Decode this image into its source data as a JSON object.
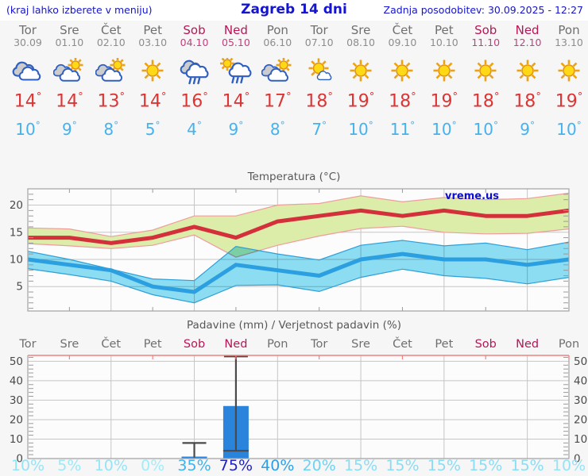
{
  "header": {
    "menu_hint": "(kraj lahko izberete v meniju)",
    "title": "Zagreb 14 dni",
    "last_update": "Zadnja posodobitev: 30.09.2025 - 12:27"
  },
  "watermark": "vreme.us",
  "colors": {
    "header_blue": "#1414d2",
    "day_gray": "#6f6f6f",
    "weekend_red": "#b81557",
    "tmax_red": "#dd3434",
    "tmin_blue": "#45b2ef",
    "max_line": "#d4303c",
    "max_band": "#dcedaa",
    "max_band_edge": "#f09c9c",
    "min_line": "#2b9fe0",
    "min_band": "#8edff5",
    "min_band_edge": "#2f9fd8",
    "bar_blue": "#2b84dc",
    "whisker_gray": "#4a4a4a",
    "top_axis_pink": "#f08080",
    "grid": "#c6c6c6",
    "plot_border": "#a3a3a3",
    "axis_text": "#4a4a4a",
    "watermark_blue": "#0e0ecc",
    "plot_bg": "#fcfcfc"
  },
  "days": [
    {
      "name": "Tor",
      "date": "30.09",
      "weekend": false,
      "icon": "cloudy",
      "tmax": "14",
      "tmin": "10",
      "prob": "10%",
      "prob_color": "#97e3f6"
    },
    {
      "name": "Sre",
      "date": "01.10",
      "weekend": false,
      "icon": "partly",
      "tmax": "14",
      "tmin": "9",
      "prob": "5%",
      "prob_color": "#9ce8f8"
    },
    {
      "name": "Čet",
      "date": "02.10",
      "weekend": false,
      "icon": "partly",
      "tmax": "13",
      "tmin": "8",
      "prob": "10%",
      "prob_color": "#97e3f6"
    },
    {
      "name": "Pet",
      "date": "03.10",
      "weekend": false,
      "icon": "sunny",
      "tmax": "14",
      "tmin": "5",
      "prob": "0%",
      "prob_color": "#a2ecfa"
    },
    {
      "name": "Sob",
      "date": "04.10",
      "weekend": true,
      "icon": "rain",
      "tmax": "16",
      "tmin": "4",
      "prob": "35%",
      "prob_color": "#3cb3ee"
    },
    {
      "name": "Ned",
      "date": "05.10",
      "weekend": true,
      "icon": "sun-rain",
      "tmax": "14",
      "tmin": "9",
      "prob": "75%",
      "prob_color": "#2121c3"
    },
    {
      "name": "Pon",
      "date": "06.10",
      "weekend": false,
      "icon": "partly",
      "tmax": "17",
      "tmin": "8",
      "prob": "40%",
      "prob_color": "#2ba0e8"
    },
    {
      "name": "Tor",
      "date": "07.10",
      "weekend": false,
      "icon": "mostly-sunny",
      "tmax": "18",
      "tmin": "7",
      "prob": "20%",
      "prob_color": "#6fd2f2"
    },
    {
      "name": "Sre",
      "date": "08.10",
      "weekend": false,
      "icon": "sunny",
      "tmax": "19",
      "tmin": "10",
      "prob": "15%",
      "prob_color": "#8adcf4"
    },
    {
      "name": "Čet",
      "date": "09.10",
      "weekend": false,
      "icon": "sunny",
      "tmax": "18",
      "tmin": "11",
      "prob": "15%",
      "prob_color": "#8adcf4"
    },
    {
      "name": "Pet",
      "date": "10.10",
      "weekend": false,
      "icon": "sunny",
      "tmax": "19",
      "tmin": "10",
      "prob": "15%",
      "prob_color": "#8adcf4"
    },
    {
      "name": "Sob",
      "date": "11.10",
      "weekend": true,
      "icon": "sunny",
      "tmax": "18",
      "tmin": "10",
      "prob": "15%",
      "prob_color": "#8adcf4"
    },
    {
      "name": "Ned",
      "date": "12.10",
      "weekend": true,
      "icon": "sunny",
      "tmax": "18",
      "tmin": "9",
      "prob": "15%",
      "prob_color": "#8adcf4"
    },
    {
      "name": "Pon",
      "date": "13.10",
      "weekend": false,
      "icon": "sunny",
      "tmax": "19",
      "tmin": "10",
      "prob": "10%",
      "prob_color": "#97e3f6"
    }
  ],
  "chart_data": [
    {
      "type": "line",
      "title": "Temperatura (°C)",
      "x_labels": [
        "Tor",
        "Sre",
        "Čet",
        "Pet",
        "Sob",
        "Ned",
        "Pon",
        "Tor",
        "Sre",
        "Čet",
        "Pet",
        "Sob",
        "Ned",
        "Pon"
      ],
      "ylim": [
        0.5,
        23
      ],
      "yticks": [
        5,
        10,
        15,
        20
      ],
      "grid": true,
      "series": [
        {
          "name": "max-temp",
          "values": [
            14,
            14,
            13,
            14,
            16,
            14,
            17,
            18,
            19,
            18,
            19,
            18,
            18,
            19
          ]
        },
        {
          "name": "max-range-upper",
          "values": [
            15.8,
            15.6,
            14.2,
            15.4,
            18.0,
            18.0,
            20.0,
            20.3,
            21.7,
            20.6,
            21.4,
            21.0,
            21.2,
            22.2
          ]
        },
        {
          "name": "max-range-lower",
          "values": [
            12.9,
            12.5,
            12.0,
            12.6,
            14.5,
            10.4,
            12.6,
            14.3,
            15.7,
            16.1,
            15.0,
            14.7,
            14.8,
            15.6
          ]
        },
        {
          "name": "min-temp",
          "values": [
            10,
            9,
            8,
            5,
            4,
            9,
            8,
            7,
            10,
            11,
            10,
            10,
            9,
            10
          ]
        },
        {
          "name": "min-range-upper",
          "values": [
            11.5,
            10.0,
            8.2,
            6.4,
            6.1,
            12.4,
            11.0,
            9.9,
            12.6,
            13.5,
            12.5,
            13.0,
            11.8,
            13.2
          ]
        },
        {
          "name": "min-range-lower",
          "values": [
            8.3,
            7.2,
            6.0,
            3.5,
            2.0,
            5.2,
            5.3,
            4.1,
            6.7,
            8.2,
            7.0,
            6.5,
            5.5,
            6.7
          ]
        }
      ]
    },
    {
      "type": "bar",
      "title": "Padavine (mm) / Verjetnost padavin (%)",
      "categories": [
        "Tor",
        "Sre",
        "Čet",
        "Pet",
        "Sob",
        "Ned",
        "Pon",
        "Tor",
        "Sre",
        "Čet",
        "Pet",
        "Sob",
        "Ned",
        "Pon"
      ],
      "ylim": [
        0,
        53
      ],
      "yticks": [
        0,
        10,
        20,
        30,
        40,
        50
      ],
      "grid": true,
      "precip_mm": [
        0,
        0,
        0,
        0,
        1,
        27,
        0,
        0,
        0,
        0,
        0,
        0,
        0,
        0
      ],
      "whisker_low": [
        null,
        null,
        null,
        null,
        0.5,
        4,
        null,
        null,
        null,
        null,
        null,
        null,
        null,
        null
      ],
      "whisker_high": [
        null,
        null,
        null,
        null,
        8,
        52.5,
        null,
        null,
        null,
        null,
        null,
        null,
        null,
        null
      ],
      "probability_pct": [
        10,
        5,
        10,
        0,
        35,
        75,
        40,
        20,
        15,
        15,
        15,
        15,
        15,
        10
      ]
    }
  ]
}
